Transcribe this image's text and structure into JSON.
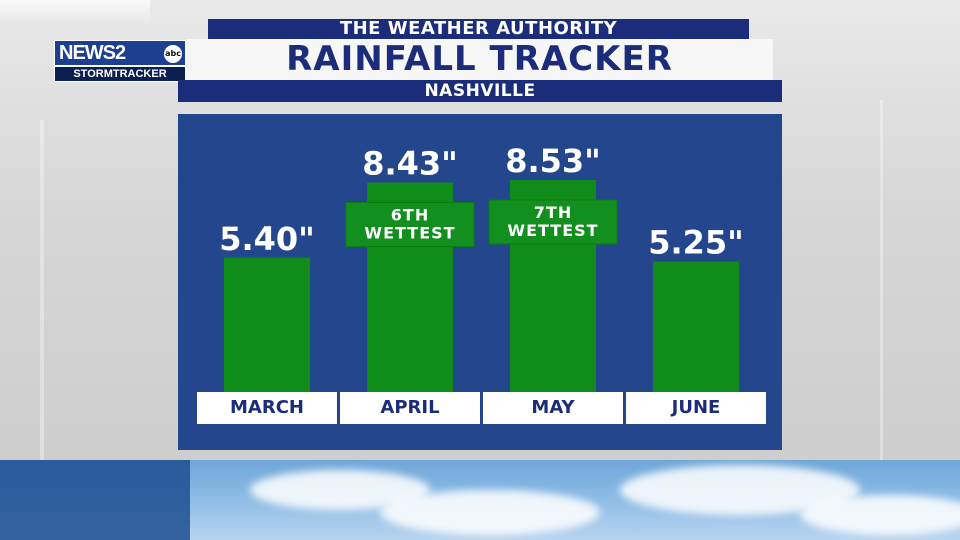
{
  "branding": {
    "logo_news": "NEWS2",
    "logo_abc": "abc",
    "logo_sub": "STORMTRACKER"
  },
  "header": {
    "authority": "THE WEATHER AUTHORITY",
    "title": "RAINFALL TRACKER",
    "city": "NASHVILLE"
  },
  "colors": {
    "panel": "#24468d",
    "bar": "#0f8c1a",
    "header_navy": "#1b2d7a"
  },
  "chart_data": {
    "type": "bar",
    "title": "RAINFALL TRACKER",
    "categories": [
      "MARCH",
      "APRIL",
      "MAY",
      "JUNE"
    ],
    "values": [
      5.4,
      8.43,
      8.53,
      5.25
    ],
    "value_labels": [
      "5.40\"",
      "8.43\"",
      "8.53\"",
      "5.25\""
    ],
    "annotations": [
      {
        "category": "APRIL",
        "text": [
          "6TH",
          "WETTEST"
        ]
      },
      {
        "category": "MAY",
        "text": [
          "7TH",
          "WETTEST"
        ]
      }
    ],
    "units": "inches",
    "grid": false
  }
}
